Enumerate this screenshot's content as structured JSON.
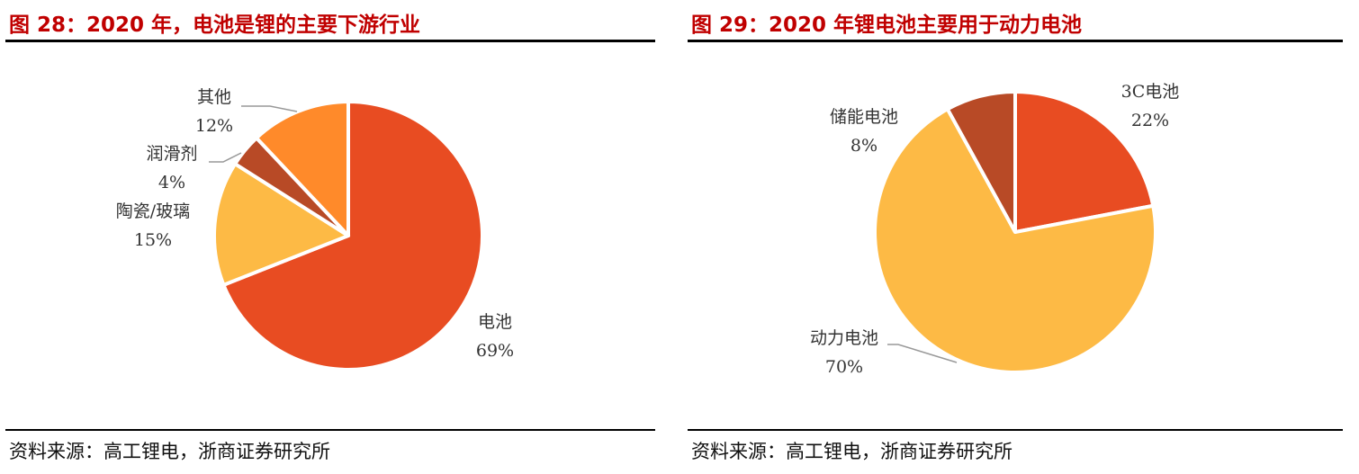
{
  "chart_data": [
    {
      "type": "pie",
      "title": "图 28：2020 年，电池是锂的主要下游行业",
      "source": "资料来源：高工锂电，浙商证券研究所",
      "slices": [
        {
          "label": "电池",
          "value": 69,
          "display": "69%",
          "color": "#E84C22"
        },
        {
          "label": "陶瓷/玻璃",
          "value": 15,
          "display": "15%",
          "color": "#FDBA45"
        },
        {
          "label": "润滑剂",
          "value": 4,
          "display": "4%",
          "color": "#B84A26"
        },
        {
          "label": "其他",
          "value": 12,
          "display": "12%",
          "color": "#FF8A2A"
        }
      ]
    },
    {
      "type": "pie",
      "title": "图 29：2020 年锂电池主要用于动力电池",
      "source": "资料来源：高工锂电，浙商证券研究所",
      "slices": [
        {
          "label": "3C电池",
          "value": 22,
          "display": "22%",
          "color": "#E84C22"
        },
        {
          "label": "动力电池",
          "value": 70,
          "display": "70%",
          "color": "#FDBA45"
        },
        {
          "label": "储能电池",
          "value": 8,
          "display": "8%",
          "color": "#B84A26"
        }
      ]
    }
  ]
}
